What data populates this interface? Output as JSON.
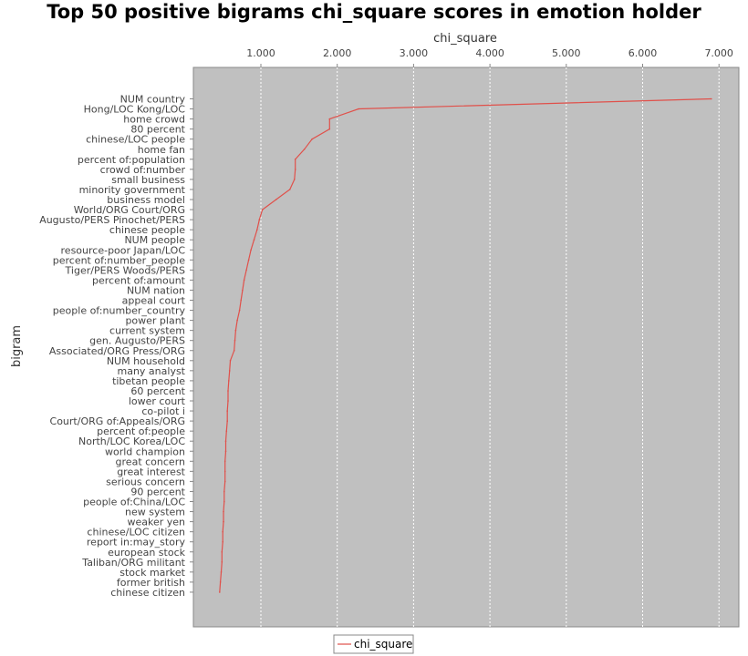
{
  "chart_data": {
    "type": "line",
    "title": "Top 50 positive bigrams chi_square scores in emotion holder",
    "xlabel": "chi_square",
    "ylabel": "bigram",
    "x_ticks": [
      "1.000",
      "2.000",
      "3.000",
      "4.000",
      "5.000",
      "6.000",
      "7.000"
    ],
    "xlim": [
      0.3,
      7.2
    ],
    "grid": true,
    "legend_position": "bottom",
    "series": [
      {
        "name": "chi_square",
        "color": "#e0504a",
        "categories": [
          "NUM country",
          "Hong/LOC Kong/LOC",
          "home crowd",
          "80 percent",
          "chinese/LOC people",
          "home fan",
          "percent of:population",
          "crowd of:number",
          "small business",
          "minority government",
          "business model",
          "World/ORG Court/ORG",
          "Augusto/PERS Pinochet/PERS",
          "chinese people",
          "NUM people",
          "resource-poor Japan/LOC",
          "percent of:number_people",
          "Tiger/PERS Woods/PERS",
          "percent of:amount",
          "NUM nation",
          "appeal court",
          "people of:number_country",
          "power plant",
          "current system",
          "gen. Augusto/PERS",
          "Associated/ORG Press/ORG",
          "NUM household",
          "many analyst",
          "tibetan people",
          "60 percent",
          "lower court",
          "co-pilot i",
          "Court/ORG of:Appeals/ORG",
          "percent of:people",
          "North/LOC Korea/LOC",
          "world champion",
          "great concern",
          "great interest",
          "serious concern",
          "90 percent",
          "people of:China/LOC",
          "new system",
          "weaker yen",
          "chinese/LOC citizen",
          "report in:may_story",
          "european stock",
          "Taliban/ORG militant",
          "stock market",
          "former british",
          "chinese citizen"
        ],
        "values": [
          6.9,
          2.28,
          1.9,
          1.9,
          1.67,
          1.57,
          1.45,
          1.45,
          1.44,
          1.38,
          1.2,
          1.02,
          0.98,
          0.95,
          0.91,
          0.87,
          0.84,
          0.81,
          0.78,
          0.76,
          0.74,
          0.72,
          0.69,
          0.67,
          0.66,
          0.65,
          0.6,
          0.59,
          0.58,
          0.57,
          0.57,
          0.56,
          0.56,
          0.55,
          0.54,
          0.54,
          0.53,
          0.53,
          0.53,
          0.52,
          0.52,
          0.51,
          0.51,
          0.5,
          0.5,
          0.49,
          0.49,
          0.48,
          0.47,
          0.46
        ]
      }
    ]
  }
}
